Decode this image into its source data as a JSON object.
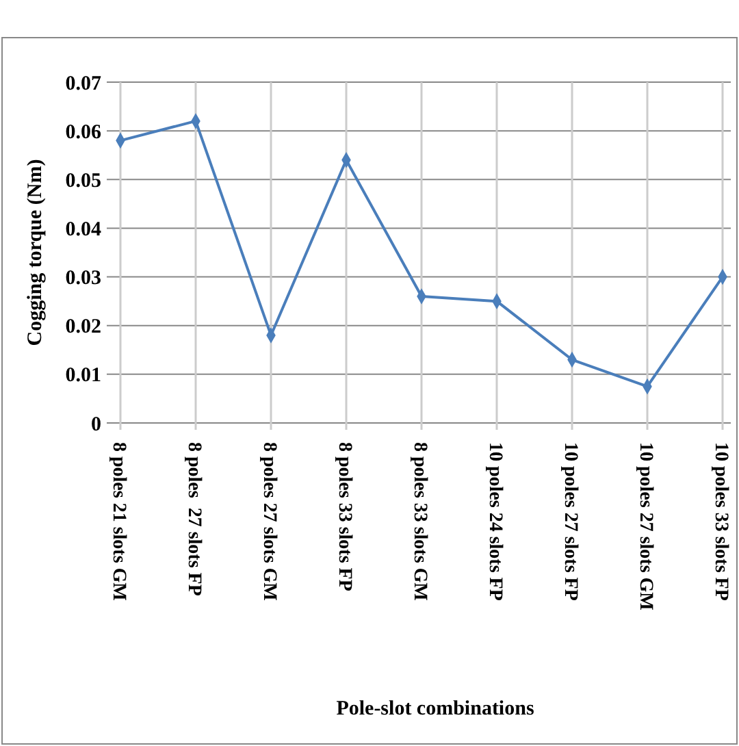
{
  "chart_data": {
    "type": "line",
    "xlabel": "Pole-slot combinations",
    "ylabel": "Cogging torque (Nm)",
    "categories": [
      "8 poles 21 slots GM",
      "8 poles  27 slots FP",
      "8 poles 27 slots GM",
      "8 poles 33 slots FP",
      "8 poles 33 slots GM",
      "10 poles 24 slots FP",
      "10 poles 27 slots FP",
      "10 poles 27 slots GM",
      "10 poles 33 slots FP"
    ],
    "series": [
      {
        "color": "#4a7ebb",
        "values": [
          0.058,
          0.062,
          0.018,
          0.054,
          0.026,
          0.025,
          0.013,
          0.0075,
          0.03
        ]
      }
    ],
    "ylim": [
      0,
      0.07
    ],
    "yticks": [
      0,
      0.01,
      0.02,
      0.03,
      0.04,
      0.05,
      0.06,
      0.07
    ],
    "grid": true,
    "marker": "diamond",
    "line_style": "solid"
  }
}
